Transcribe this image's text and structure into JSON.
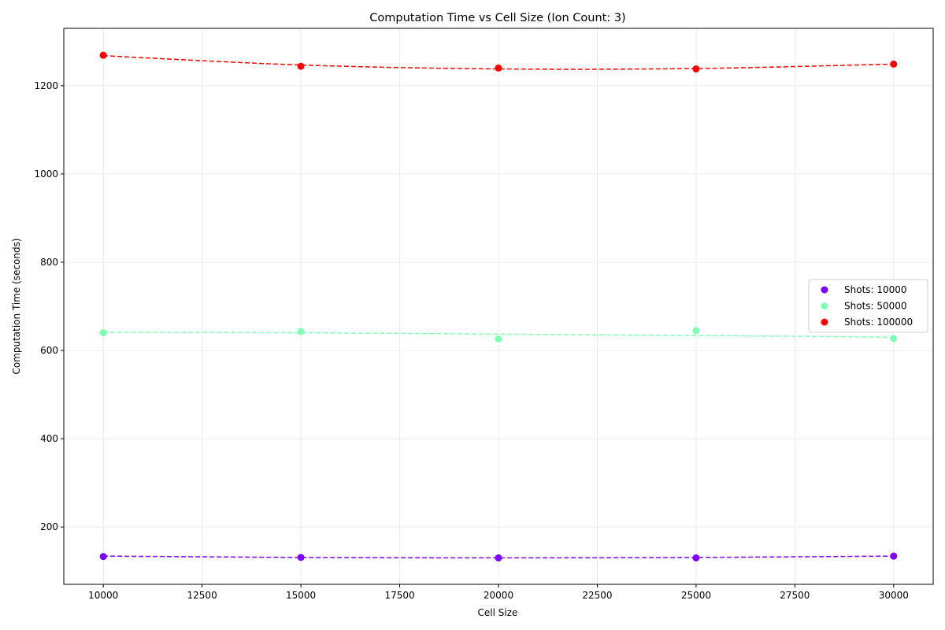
{
  "chart_data": {
    "type": "scatter",
    "title": "Computation Time vs Cell Size (Ion Count: 3)",
    "xlabel": "Cell Size",
    "ylabel": "Computation Time (seconds)",
    "xlim": [
      9000,
      31000
    ],
    "ylim": [
      70,
      1330
    ],
    "xticks": [
      10000,
      12500,
      15000,
      17500,
      20000,
      22500,
      25000,
      27500,
      30000
    ],
    "yticks": [
      200,
      400,
      600,
      800,
      1000,
      1200
    ],
    "grid": true,
    "legend_position": "center-right",
    "x": [
      10000,
      15000,
      20000,
      25000,
      30000
    ],
    "series": [
      {
        "name": "Shots: 10000",
        "color": "#8000ff",
        "values": [
          133,
          131,
          130,
          130,
          134
        ],
        "trend": [
          134,
          131,
          130,
          131,
          134
        ]
      },
      {
        "name": "Shots: 50000",
        "color": "#80ffb4",
        "values": [
          640,
          643,
          626,
          645,
          627
        ],
        "trend": [
          641,
          640,
          637,
          634,
          630
        ]
      },
      {
        "name": "Shots: 100000",
        "color": "#ff0000",
        "values": [
          1269,
          1244,
          1240,
          1238,
          1249
        ],
        "trend": [
          1268,
          1247,
          1238,
          1239,
          1249
        ]
      }
    ]
  }
}
